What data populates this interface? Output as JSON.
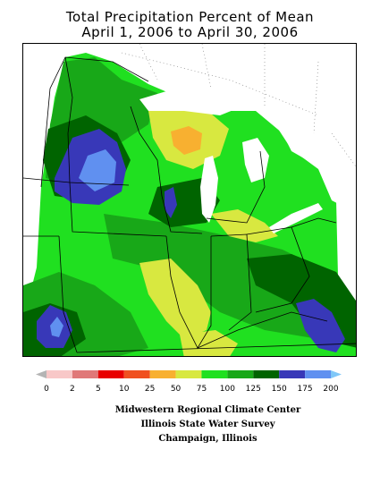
{
  "title_line1": "Total Precipitation Percent of Mean",
  "title_line2": "April 1, 2006 to April 30, 2006",
  "legend": {
    "ticks": [
      "0",
      "2",
      "5",
      "10",
      "25",
      "50",
      "75",
      "100",
      "125",
      "150",
      "175",
      "200"
    ],
    "colors": [
      "#b4b4b4",
      "#f8c8c8",
      "#e07878",
      "#e80000",
      "#f05020",
      "#f8b030",
      "#d8e840",
      "#20e020",
      "#18a818",
      "#006400",
      "#3838b8",
      "#6090f0",
      "#80c8f8"
    ]
  },
  "credits": {
    "line1": "Midwestern Regional Climate Center",
    "line2": "Illinois State Water Survey",
    "line3": "Champaign, Illinois"
  },
  "palette": {
    "c75_100": "#20e020",
    "c100_125": "#18a818",
    "c125_150": "#006400",
    "c150_175": "#3838b8",
    "c175_200": "#6090f0",
    "c50_75": "#d8e840",
    "c25_50": "#f8b030",
    "water": "#ffffff"
  }
}
